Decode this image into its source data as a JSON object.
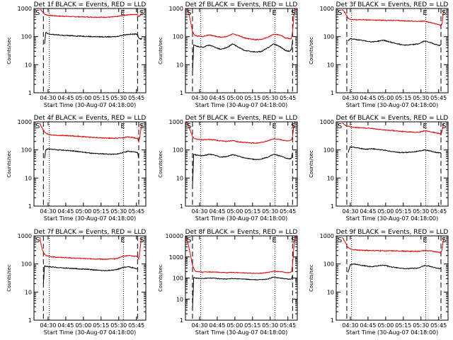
{
  "figure": {
    "time_axis_label": "Start Time (30-Aug-07 04:18:00)",
    "y_axis_label": "Counts/sec",
    "y_tick_labels": [
      "1",
      "10",
      "100",
      "1000",
      "10000"
    ],
    "x_tick_labels": [
      "04:30",
      "04:45",
      "05:00",
      "05:15",
      "05:30",
      "05:45"
    ],
    "marker_labels": {
      "start": "S",
      "end": "E"
    },
    "colors": {
      "events": "#000000",
      "lld": "#e00000",
      "frame": "#000000"
    }
  },
  "chart_data": [
    {
      "type": "line",
      "title": "Det 1f BLACK = Events, RED = LLD",
      "x_unit": "minutes after 04:18",
      "xlim": [
        0,
        95
      ],
      "ylim": [
        1,
        1000
      ],
      "yscale": "log",
      "xlabel": "Start Time (30-Aug-07 04:18:00)",
      "ylabel": "Counts/sec",
      "markers": {
        "dashed": [
          8,
          88
        ],
        "dotted": [
          13,
          76
        ]
      },
      "series": [
        {
          "name": "LLD",
          "color": "#e00000",
          "x": [
            5,
            6,
            8,
            9,
            12,
            15,
            20,
            25,
            30,
            35,
            40,
            45,
            50,
            55,
            60,
            65,
            70,
            75,
            80,
            85,
            87,
            88,
            89,
            91,
            92
          ],
          "y": [
            900,
            900,
            700,
            620,
            580,
            560,
            540,
            530,
            520,
            510,
            505,
            500,
            495,
            490,
            490,
            495,
            510,
            560,
            600,
            610,
            620,
            600,
            520,
            600,
            900
          ]
        },
        {
          "name": "Events",
          "color": "#000000",
          "x": [
            9,
            10,
            12,
            15,
            20,
            25,
            30,
            35,
            40,
            45,
            50,
            55,
            60,
            65,
            70,
            75,
            80,
            85,
            87,
            88,
            89,
            91,
            92
          ],
          "y": [
            55,
            140,
            125,
            120,
            115,
            110,
            108,
            106,
            104,
            102,
            100,
            99,
            98,
            98,
            100,
            112,
            120,
            122,
            125,
            115,
            90,
            80,
            90
          ]
        }
      ]
    },
    {
      "type": "line",
      "title": "Det 2f BLACK = Events, RED = LLD",
      "x_unit": "minutes after 04:18",
      "xlim": [
        0,
        95
      ],
      "ylim": [
        1,
        1000
      ],
      "yscale": "log",
      "xlabel": "Start Time (30-Aug-07 04:18:00)",
      "ylabel": "Counts/sec",
      "markers": {
        "dashed": [
          6,
          91
        ],
        "dotted": [
          13,
          76
        ]
      },
      "series": [
        {
          "name": "LLD",
          "color": "#e00000",
          "x": [
            0,
            2,
            4,
            6,
            8,
            10,
            15,
            20,
            25,
            30,
            35,
            40,
            45,
            50,
            55,
            60,
            65,
            70,
            75,
            80,
            85,
            88,
            90,
            91,
            92,
            93
          ],
          "y": [
            1000,
            1000,
            400,
            150,
            110,
            105,
            100,
            115,
            105,
            95,
            100,
            125,
            110,
            90,
            82,
            78,
            80,
            95,
            120,
            115,
            90,
            85,
            85,
            150,
            500,
            1000
          ]
        },
        {
          "name": "Events",
          "color": "#000000",
          "x": [
            6,
            7,
            8,
            10,
            15,
            20,
            25,
            30,
            35,
            40,
            45,
            50,
            55,
            60,
            65,
            70,
            75,
            80,
            85,
            88,
            90,
            91
          ],
          "y": [
            5,
            50,
            48,
            45,
            42,
            50,
            42,
            35,
            40,
            55,
            42,
            32,
            30,
            28,
            30,
            40,
            55,
            45,
            32,
            30,
            35,
            70
          ]
        }
      ]
    },
    {
      "type": "line",
      "title": "Det 3f BLACK = Events, RED = LLD",
      "x_unit": "minutes after 04:18",
      "xlim": [
        0,
        95
      ],
      "ylim": [
        1,
        1000
      ],
      "yscale": "log",
      "xlabel": "Start Time (30-Aug-07 04:18:00)",
      "ylabel": "Counts/sec",
      "markers": {
        "dashed": [
          9,
          89
        ],
        "dotted": [
          13,
          76
        ]
      },
      "series": [
        {
          "name": "LLD",
          "color": "#e00000",
          "x": [
            5,
            6,
            8,
            10,
            12,
            15,
            20,
            30,
            40,
            50,
            60,
            70,
            75,
            80,
            85,
            88,
            89,
            90,
            91,
            92
          ],
          "y": [
            900,
            850,
            650,
            450,
            410,
            400,
            400,
            390,
            380,
            375,
            360,
            350,
            350,
            320,
            280,
            260,
            240,
            300,
            700,
            900
          ]
        },
        {
          "name": "Events",
          "color": "#000000",
          "x": [
            10,
            12,
            15,
            20,
            25,
            30,
            35,
            40,
            45,
            50,
            55,
            60,
            65,
            70,
            75,
            80,
            85,
            88,
            89
          ],
          "y": [
            70,
            85,
            80,
            75,
            70,
            65,
            68,
            75,
            65,
            58,
            52,
            50,
            52,
            55,
            70,
            62,
            52,
            48,
            50
          ]
        }
      ]
    },
    {
      "type": "line",
      "title": "Det 4f BLACK = Events, RED = LLD",
      "x_unit": "minutes after 04:18",
      "xlim": [
        0,
        95
      ],
      "ylim": [
        1,
        1000
      ],
      "yscale": "log",
      "xlabel": "Start Time (30-Aug-07 04:18:00)",
      "ylabel": "Counts/sec",
      "markers": {
        "dashed": [
          8,
          89
        ],
        "dotted": [
          13,
          76
        ]
      },
      "series": [
        {
          "name": "LLD",
          "color": "#e00000",
          "x": [
            5,
            6,
            8,
            10,
            12,
            15,
            20,
            30,
            40,
            50,
            60,
            70,
            75,
            80,
            85,
            88,
            89,
            90,
            91,
            92
          ],
          "y": [
            900,
            700,
            500,
            400,
            360,
            340,
            330,
            320,
            300,
            280,
            265,
            260,
            270,
            290,
            270,
            260,
            200,
            300,
            600,
            900
          ]
        },
        {
          "name": "Events",
          "color": "#000000",
          "x": [
            9,
            10,
            12,
            15,
            20,
            30,
            40,
            50,
            60,
            70,
            75,
            80,
            85,
            88,
            89
          ],
          "y": [
            50,
            100,
            110,
            105,
            100,
            95,
            85,
            75,
            72,
            70,
            80,
            90,
            85,
            80,
            50
          ]
        }
      ]
    },
    {
      "type": "line",
      "title": "Det 5f BLACK = Events, RED = LLD",
      "x_unit": "minutes after 04:18",
      "xlim": [
        0,
        95
      ],
      "ylim": [
        1,
        1000
      ],
      "yscale": "log",
      "xlabel": "Start Time (30-Aug-07 04:18:00)",
      "ylabel": "Counts/sec",
      "markers": {
        "dashed": [
          6,
          91
        ],
        "dotted": [
          13,
          76
        ]
      },
      "series": [
        {
          "name": "LLD",
          "color": "#e00000",
          "x": [
            0,
            2,
            4,
            6,
            8,
            10,
            15,
            20,
            25,
            30,
            35,
            40,
            45,
            50,
            55,
            60,
            65,
            70,
            75,
            80,
            85,
            88,
            90,
            91,
            92,
            93
          ],
          "y": [
            1000,
            900,
            500,
            300,
            250,
            240,
            230,
            240,
            225,
            210,
            200,
            215,
            195,
            185,
            180,
            175,
            185,
            210,
            250,
            235,
            215,
            210,
            230,
            300,
            700,
            1000
          ]
        },
        {
          "name": "Events",
          "color": "#000000",
          "x": [
            6,
            7,
            8,
            10,
            15,
            20,
            25,
            30,
            35,
            40,
            45,
            50,
            55,
            60,
            65,
            70,
            75,
            80,
            85,
            88,
            90,
            91
          ],
          "y": [
            5,
            70,
            68,
            65,
            62,
            70,
            65,
            55,
            58,
            68,
            60,
            52,
            48,
            45,
            48,
            55,
            70,
            62,
            52,
            48,
            50,
            80
          ]
        }
      ]
    },
    {
      "type": "line",
      "title": "Det 6f BLACK = Events, RED = LLD",
      "x_unit": "minutes after 04:18",
      "xlim": [
        0,
        95
      ],
      "ylim": [
        1,
        1000
      ],
      "yscale": "log",
      "xlabel": "Start Time (30-Aug-07 04:18:00)",
      "ylabel": "Counts/sec",
      "markers": {
        "dashed": [
          9,
          89
        ],
        "dotted": [
          13,
          76
        ]
      },
      "series": [
        {
          "name": "LLD",
          "color": "#e00000",
          "x": [
            5,
            6,
            8,
            10,
            12,
            15,
            20,
            30,
            40,
            50,
            60,
            70,
            75,
            80,
            85,
            88,
            89,
            90,
            91,
            92
          ],
          "y": [
            900,
            850,
            750,
            700,
            660,
            640,
            620,
            580,
            520,
            480,
            440,
            420,
            480,
            450,
            400,
            380,
            340,
            500,
            800,
            900
          ]
        },
        {
          "name": "Events",
          "color": "#000000",
          "x": [
            10,
            12,
            15,
            20,
            25,
            30,
            35,
            40,
            45,
            50,
            55,
            60,
            65,
            70,
            75,
            80,
            85,
            88,
            89
          ],
          "y": [
            80,
            130,
            125,
            115,
            105,
            112,
            105,
            98,
            90,
            85,
            80,
            82,
            85,
            90,
            100,
            92,
            82,
            78,
            80
          ]
        }
      ]
    },
    {
      "type": "line",
      "title": "Det 7f BLACK = Events, RED = LLD",
      "x_unit": "minutes after 04:18",
      "xlim": [
        0,
        95
      ],
      "ylim": [
        1,
        1000
      ],
      "yscale": "log",
      "xlabel": "Start Time (30-Aug-07 04:18:00)",
      "ylabel": "Counts/sec",
      "markers": {
        "dashed": [
          8,
          88
        ],
        "dotted": [
          13,
          76
        ]
      },
      "series": [
        {
          "name": "LLD",
          "color": "#e00000",
          "x": [
            5,
            6,
            8,
            10,
            12,
            15,
            20,
            25,
            30,
            35,
            40,
            45,
            50,
            55,
            60,
            65,
            70,
            75,
            80,
            85,
            88,
            89,
            90,
            91,
            92
          ],
          "y": [
            900,
            500,
            250,
            200,
            190,
            180,
            175,
            170,
            165,
            160,
            158,
            155,
            150,
            150,
            148,
            150,
            155,
            185,
            200,
            190,
            185,
            150,
            300,
            700,
            900
          ]
        },
        {
          "name": "Events",
          "color": "#000000",
          "x": [
            8,
            9,
            12,
            15,
            20,
            25,
            30,
            35,
            40,
            45,
            50,
            55,
            60,
            65,
            70,
            75,
            80,
            85,
            88
          ],
          "y": [
            20,
            85,
            80,
            78,
            75,
            72,
            70,
            68,
            66,
            65,
            62,
            60,
            58,
            60,
            62,
            75,
            80,
            72,
            65
          ]
        }
      ]
    },
    {
      "type": "line",
      "title": "Det 8f BLACK = Events, RED = LLD",
      "x_unit": "minutes after 04:18",
      "xlim": [
        0,
        95
      ],
      "ylim": [
        1,
        10000
      ],
      "yscale": "log",
      "xlabel": "Start Time (30-Aug-07 04:18:00)",
      "ylabel": "Counts/sec",
      "markers": {
        "dashed": [
          6,
          91
        ],
        "dotted": [
          13,
          76
        ]
      },
      "series": [
        {
          "name": "LLD",
          "color": "#e00000",
          "x": [
            0,
            2,
            4,
            6,
            8,
            10,
            15,
            20,
            25,
            30,
            35,
            40,
            45,
            50,
            55,
            60,
            65,
            70,
            75,
            80,
            85,
            88,
            90,
            91,
            92,
            93
          ],
          "y": [
            10000,
            5000,
            1500,
            400,
            220,
            200,
            190,
            195,
            190,
            185,
            180,
            185,
            180,
            175,
            170,
            165,
            170,
            185,
            210,
            200,
            185,
            180,
            200,
            400,
            2500,
            10000
          ]
        },
        {
          "name": "Events",
          "color": "#000000",
          "x": [
            6,
            7,
            8,
            10,
            15,
            20,
            25,
            30,
            35,
            40,
            45,
            50,
            55,
            60,
            65,
            70,
            75,
            80,
            85,
            88,
            90,
            91
          ],
          "y": [
            3,
            105,
            100,
            98,
            95,
            100,
            98,
            92,
            90,
            95,
            92,
            88,
            85,
            82,
            85,
            90,
            110,
            100,
            92,
            88,
            90,
            130
          ]
        }
      ]
    },
    {
      "type": "line",
      "title": "Det 9f BLACK = Events, RED = LLD",
      "x_unit": "minutes after 04:18",
      "xlim": [
        0,
        95
      ],
      "ylim": [
        1,
        1000
      ],
      "yscale": "log",
      "xlabel": "Start Time (30-Aug-07 04:18:00)",
      "ylabel": "Counts/sec",
      "markers": {
        "dashed": [
          9,
          89
        ],
        "dotted": [
          13,
          76
        ]
      },
      "series": [
        {
          "name": "LLD",
          "color": "#e00000",
          "x": [
            5,
            6,
            8,
            10,
            12,
            15,
            20,
            30,
            40,
            50,
            60,
            70,
            75,
            80,
            85,
            88,
            89,
            90,
            91,
            92
          ],
          "y": [
            900,
            800,
            550,
            380,
            340,
            320,
            310,
            300,
            295,
            290,
            285,
            280,
            300,
            290,
            270,
            260,
            240,
            350,
            700,
            900
          ]
        },
        {
          "name": "Events",
          "color": "#000000",
          "x": [
            10,
            12,
            15,
            20,
            25,
            30,
            35,
            40,
            45,
            50,
            55,
            60,
            65,
            70,
            75,
            80,
            85,
            88,
            89
          ],
          "y": [
            50,
            95,
            100,
            92,
            85,
            80,
            85,
            90,
            82,
            75,
            70,
            68,
            70,
            72,
            88,
            82,
            72,
            68,
            70
          ]
        }
      ]
    }
  ]
}
